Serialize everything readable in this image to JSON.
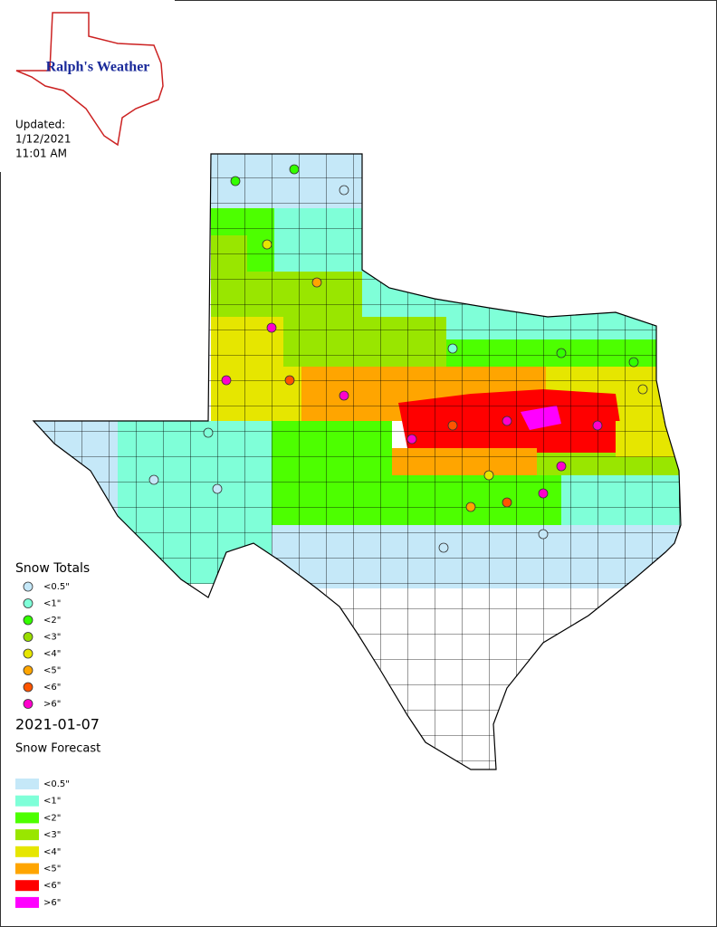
{
  "header": {
    "logo": "Ralph's Weather",
    "updated": [
      "Updated:",
      "1/12/2021",
      "11:01 AM"
    ]
  },
  "snow_totals": {
    "title": "Snow Totals",
    "items": [
      {
        "label": "<0.5\"",
        "color": "#c5e8f8"
      },
      {
        "label": "<1\"",
        "color": "#7fffd8"
      },
      {
        "label": "<2\"",
        "color": "#33ff00"
      },
      {
        "label": "<3\"",
        "color": "#99dd00"
      },
      {
        "label": "<4\"",
        "color": "#e6e600"
      },
      {
        "label": "<5\"",
        "color": "#ffa500"
      },
      {
        "label": "<6\"",
        "color": "#ff5500"
      },
      {
        "label": ">6\"",
        "color": "#ff00cc"
      }
    ]
  },
  "date": "2021-01-07",
  "snow_forecast": {
    "title": "Snow Forecast",
    "items": [
      {
        "label": "<0.5\"",
        "color": "#c5e8f8"
      },
      {
        "label": "<1\"",
        "color": "#7fffd8"
      },
      {
        "label": "<2\"",
        "color": "#4dff00"
      },
      {
        "label": "<3\"",
        "color": "#99e600"
      },
      {
        "label": "<4\"",
        "color": "#e6e600"
      },
      {
        "label": "<5\"",
        "color": "#ffa500"
      },
      {
        "label": "<6\"",
        "color": "#ff0000"
      },
      {
        "label": ">6\"",
        "color": "#ff00ff"
      }
    ]
  }
}
